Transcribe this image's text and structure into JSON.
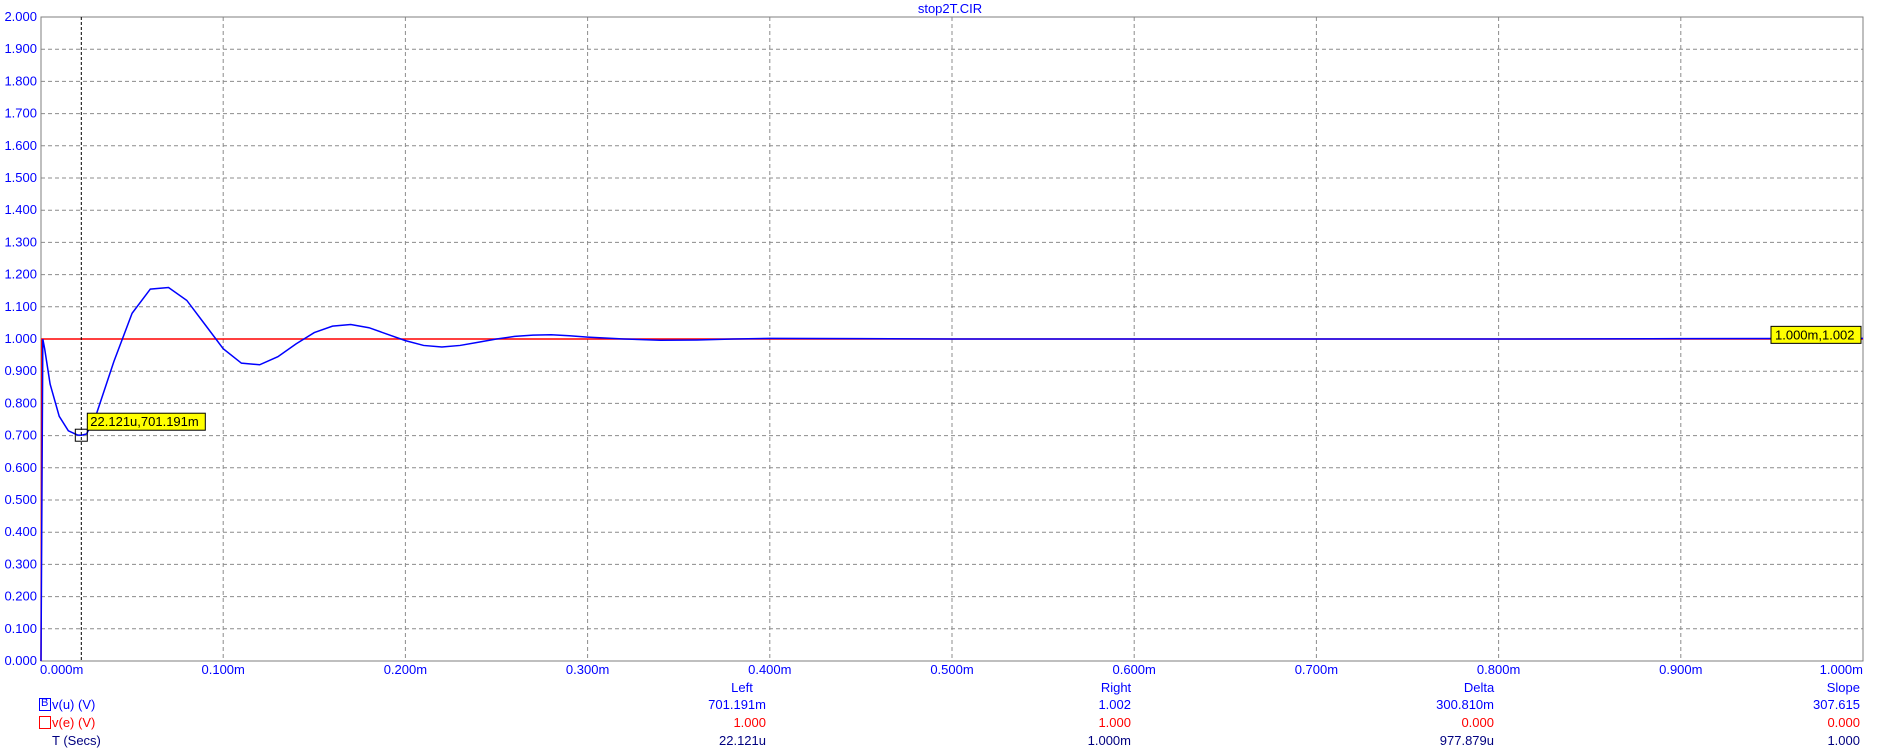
{
  "chart_data": {
    "type": "line",
    "title": "stop2T.CIR",
    "x_unit": "s",
    "xlim": [
      0,
      0.001
    ],
    "ylim": [
      0,
      2.0
    ],
    "y_ticks": [
      "0.000",
      "0.100",
      "0.200",
      "0.300",
      "0.400",
      "0.500",
      "0.600",
      "0.700",
      "0.800",
      "0.900",
      "1.000",
      "1.100",
      "1.200",
      "1.300",
      "1.400",
      "1.500",
      "1.600",
      "1.700",
      "1.800",
      "1.900",
      "2.000"
    ],
    "x_ticks": [
      "0.000m",
      "0.100m",
      "0.200m",
      "0.300m",
      "0.400m",
      "0.500m",
      "0.600m",
      "0.700m",
      "0.800m",
      "0.900m",
      "1.000m"
    ],
    "grid": true,
    "series": [
      {
        "name": "v(u) (V)",
        "color": "#0000ff",
        "x": [
          0,
          1e-06,
          2e-06,
          5e-06,
          1e-05,
          1.5e-05,
          2e-05,
          2.2121e-05,
          2.5e-05,
          3e-05,
          4e-05,
          5e-05,
          6e-05,
          7e-05,
          8e-05,
          9e-05,
          0.0001,
          0.00011,
          0.00012,
          0.00013,
          0.00014,
          0.00015,
          0.00016,
          0.00017,
          0.00018,
          0.00019,
          0.0002,
          0.00021,
          0.00022,
          0.00023,
          0.00024,
          0.00025,
          0.00026,
          0.00027,
          0.00028,
          0.00029,
          0.0003,
          0.00032,
          0.00034,
          0.00036,
          0.00038,
          0.0004,
          0.00045,
          0.0005,
          0.0006,
          0.0007,
          0.0008,
          0.0009,
          0.001
        ],
        "y": [
          0,
          1.0,
          0.97,
          0.86,
          0.76,
          0.715,
          0.702,
          0.701,
          0.705,
          0.76,
          0.93,
          1.08,
          1.155,
          1.16,
          1.12,
          1.045,
          0.97,
          0.925,
          0.92,
          0.945,
          0.985,
          1.02,
          1.04,
          1.045,
          1.035,
          1.015,
          0.995,
          0.98,
          0.975,
          0.98,
          0.99,
          1.0,
          1.008,
          1.012,
          1.013,
          1.01,
          1.006,
          1.0,
          0.996,
          0.997,
          1.0,
          1.002,
          1.001,
          1.0,
          1.0,
          1.0,
          1.0,
          1.001,
          1.002
        ]
      },
      {
        "name": "v(e) (V)",
        "color": "#ff0000",
        "x": [
          0,
          5e-07,
          0.001
        ],
        "y": [
          0,
          1.0,
          1.0
        ]
      }
    ],
    "annotations": [
      {
        "label": "22.121u,701.191m",
        "x": 2.2121e-05,
        "y": 0.701191
      },
      {
        "label": "1.000m,1.002",
        "x": 0.001,
        "y": 1.002
      }
    ],
    "cursor_x": 2.2121e-05
  },
  "readout": {
    "headers": {
      "left": "Left",
      "right": "Right",
      "delta": "Delta",
      "slope": "Slope"
    },
    "rows": [
      {
        "marker": "B",
        "name": "v(u) (V)",
        "left": "701.191m",
        "right": "1.002",
        "delta": "300.810m",
        "slope": "307.615",
        "color": "#0000ff"
      },
      {
        "marker": "",
        "name": "v(e) (V)",
        "left": "1.000",
        "right": "1.000",
        "delta": "0.000",
        "slope": "0.000",
        "color": "#ff0000"
      },
      {
        "marker": "",
        "name": "T (Secs)",
        "left": "22.121u",
        "right": "1.000m",
        "delta": "977.879u",
        "slope": "1.000",
        "color": "#000080"
      }
    ]
  }
}
